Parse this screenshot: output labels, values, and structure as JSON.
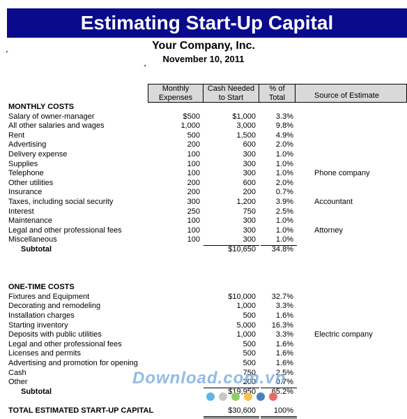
{
  "title": "Estimating Start-Up Capital",
  "company": "Your Company, Inc.",
  "date": "November 10, 2011",
  "headers": {
    "monthly": [
      "Monthly",
      "Expenses"
    ],
    "cash": [
      "Cash Needed",
      "to Start"
    ],
    "pct": [
      "% of",
      "Total"
    ],
    "source": "Source of Estimate"
  },
  "monthly_costs": {
    "title": "MONTHLY COSTS",
    "rows": [
      {
        "label": "Salary of owner-manager",
        "monthly": "$500",
        "cash": "$1,000",
        "pct": "3.3%",
        "source": ""
      },
      {
        "label": "All other salaries and wages",
        "monthly": "1,000",
        "cash": "3,000",
        "pct": "9.8%",
        "source": ""
      },
      {
        "label": "Rent",
        "monthly": "500",
        "cash": "1,500",
        "pct": "4.9%",
        "source": ""
      },
      {
        "label": "Advertising",
        "monthly": "200",
        "cash": "600",
        "pct": "2.0%",
        "source": ""
      },
      {
        "label": "Delivery expense",
        "monthly": "100",
        "cash": "300",
        "pct": "1.0%",
        "source": ""
      },
      {
        "label": "Supplies",
        "monthly": "100",
        "cash": "300",
        "pct": "1.0%",
        "source": ""
      },
      {
        "label": "Telephone",
        "monthly": "100",
        "cash": "300",
        "pct": "1.0%",
        "source": "Phone company"
      },
      {
        "label": "Other utilities",
        "monthly": "200",
        "cash": "600",
        "pct": "2.0%",
        "source": ""
      },
      {
        "label": "Insurance",
        "monthly": "200",
        "cash": "200",
        "pct": "0.7%",
        "source": ""
      },
      {
        "label": "Taxes, including social security",
        "monthly": "300",
        "cash": "1,200",
        "pct": "3.9%",
        "source": "Accountant"
      },
      {
        "label": "Interest",
        "monthly": "250",
        "cash": "750",
        "pct": "2.5%",
        "source": ""
      },
      {
        "label": "Maintenance",
        "monthly": "100",
        "cash": "300",
        "pct": "1.0%",
        "source": ""
      },
      {
        "label": "Legal and other professional fees",
        "monthly": "100",
        "cash": "300",
        "pct": "1.0%",
        "source": "Attorney"
      },
      {
        "label": "Miscellaneous",
        "monthly": "100",
        "cash": "300",
        "pct": "1.0%",
        "source": ""
      }
    ],
    "subtotal": {
      "label": "Subtotal",
      "cash": "$10,650",
      "pct": "34.8%"
    }
  },
  "one_time_costs": {
    "title": "ONE-TIME COSTS",
    "rows": [
      {
        "label": "Fixtures and Equipment",
        "cash": "$10,000",
        "pct": "32.7%",
        "source": ""
      },
      {
        "label": "Decorating and remodeling",
        "cash": "1,000",
        "pct": "3.3%",
        "source": ""
      },
      {
        "label": "Installation charges",
        "cash": "500",
        "pct": "1.6%",
        "source": ""
      },
      {
        "label": "Starting inventory",
        "cash": "5,000",
        "pct": "16.3%",
        "source": ""
      },
      {
        "label": "Deposits with public utilities",
        "cash": "1,000",
        "pct": "3.3%",
        "source": "Electric company"
      },
      {
        "label": "Legal and other professional fees",
        "cash": "500",
        "pct": "1.6%",
        "source": ""
      },
      {
        "label": "Licenses and permits",
        "cash": "500",
        "pct": "1.6%",
        "source": ""
      },
      {
        "label": "Advertising and promotion for opening",
        "cash": "500",
        "pct": "1.6%",
        "source": ""
      },
      {
        "label": "Cash",
        "cash": "750",
        "pct": "2.5%",
        "source": ""
      },
      {
        "label": "Other",
        "cash": "200",
        "pct": "0.7%",
        "source": ""
      }
    ],
    "subtotal": {
      "label": "Subtotal",
      "cash": "$19,950",
      "pct": "65.2%"
    }
  },
  "total": {
    "label": "TOTAL ESTIMATED START-UP CAPITAL",
    "cash": "$30,600",
    "pct": "100%"
  },
  "watermark": "Download.com.vn",
  "colors": {
    "title_bar": "#0a0a8c",
    "row_shade": "#e5e5e5",
    "header_fill": "#d9d9d9"
  }
}
